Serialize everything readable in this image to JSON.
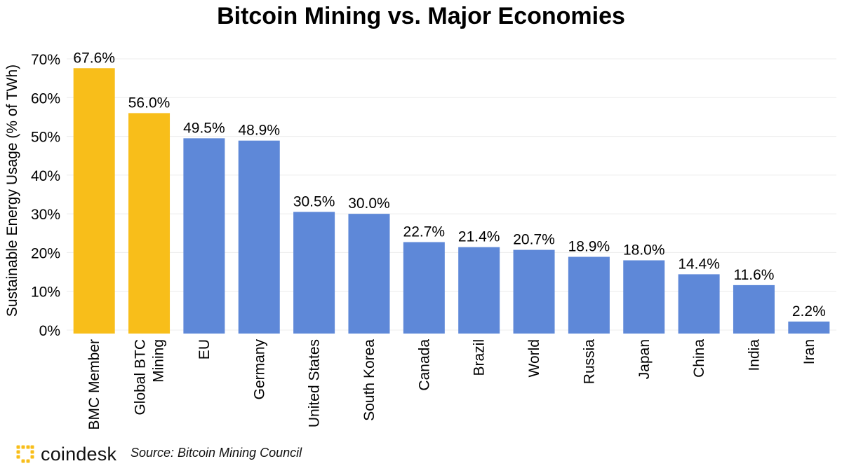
{
  "chart_data": {
    "type": "bar",
    "title": "Bitcoin Mining vs. Major Economies",
    "ylabel": "Sustainable Energy Usage (% of TWh)",
    "xlabel": "",
    "ylim": [
      0,
      70
    ],
    "yticks": [
      "0%",
      "10%",
      "20%",
      "30%",
      "40%",
      "50%",
      "60%",
      "70%"
    ],
    "ytick_values": [
      0,
      10,
      20,
      30,
      40,
      50,
      60,
      70
    ],
    "categories": [
      "BMC Member",
      "Global BTC Mining",
      "EU",
      "Germany",
      "United States",
      "South Korea",
      "Canada",
      "Brazil",
      "World",
      "Russia",
      "Japan",
      "China",
      "India",
      "Iran"
    ],
    "category_lines": [
      [
        "BMC Member"
      ],
      [
        "Global BTC",
        "Mining"
      ],
      [
        "EU"
      ],
      [
        "Germany"
      ],
      [
        "United States"
      ],
      [
        "South Korea"
      ],
      [
        "Canada"
      ],
      [
        "Brazil"
      ],
      [
        "World"
      ],
      [
        "Russia"
      ],
      [
        "Japan"
      ],
      [
        "China"
      ],
      [
        "India"
      ],
      [
        "Iran"
      ]
    ],
    "values": [
      67.6,
      56.0,
      49.5,
      48.9,
      30.5,
      30.0,
      22.7,
      21.4,
      20.7,
      18.9,
      18.0,
      14.4,
      11.6,
      2.2
    ],
    "value_labels": [
      "67.6%",
      "56.0%",
      "49.5%",
      "48.9%",
      "30.5%",
      "30.0%",
      "22.7%",
      "21.4%",
      "20.7%",
      "18.9%",
      "18.0%",
      "14.4%",
      "11.6%",
      "2.2%"
    ],
    "bar_colors": [
      "#F8BE1A",
      "#F8BE1A",
      "#5E88D8",
      "#5E88D8",
      "#5E88D8",
      "#5E88D8",
      "#5E88D8",
      "#5E88D8",
      "#5E88D8",
      "#5E88D8",
      "#5E88D8",
      "#5E88D8",
      "#5E88D8",
      "#5E88D8"
    ],
    "grid": true,
    "legend": "none"
  },
  "footer": {
    "brand": "coindesk",
    "logo_icon": "coindesk-logo-icon",
    "logo_color": "#F8BE1A",
    "source": "Source: Bitcoin Mining Council"
  }
}
